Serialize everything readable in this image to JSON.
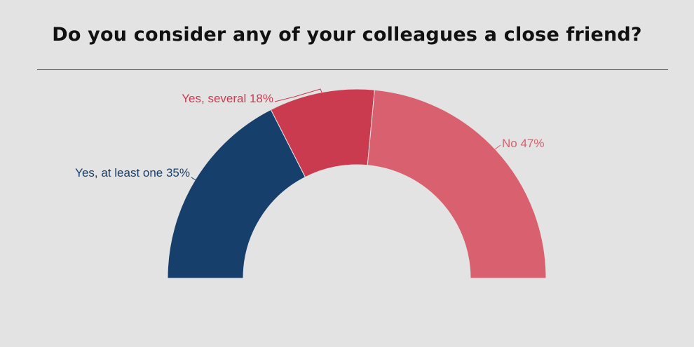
{
  "title": "Do you consider any of your colleagues a close friend?",
  "colors": {
    "background": "#e3e3e3",
    "rule": "#3f4a73"
  },
  "chart_data": {
    "type": "pie",
    "variant": "half-donut",
    "title": "Do you consider any of your colleagues a close friend?",
    "slices": [
      {
        "label": "Yes, at least one",
        "value": 35,
        "display": "Yes, at least one 35%",
        "color": "#173f6c"
      },
      {
        "label": "Yes, several",
        "value": 18,
        "display": "Yes, several 18%",
        "color": "#cb3b50"
      },
      {
        "label": "No",
        "value": 47,
        "display": "No 47%",
        "color": "#d9606e"
      }
    ],
    "unit": "%",
    "legend": "none (inline labels)"
  }
}
